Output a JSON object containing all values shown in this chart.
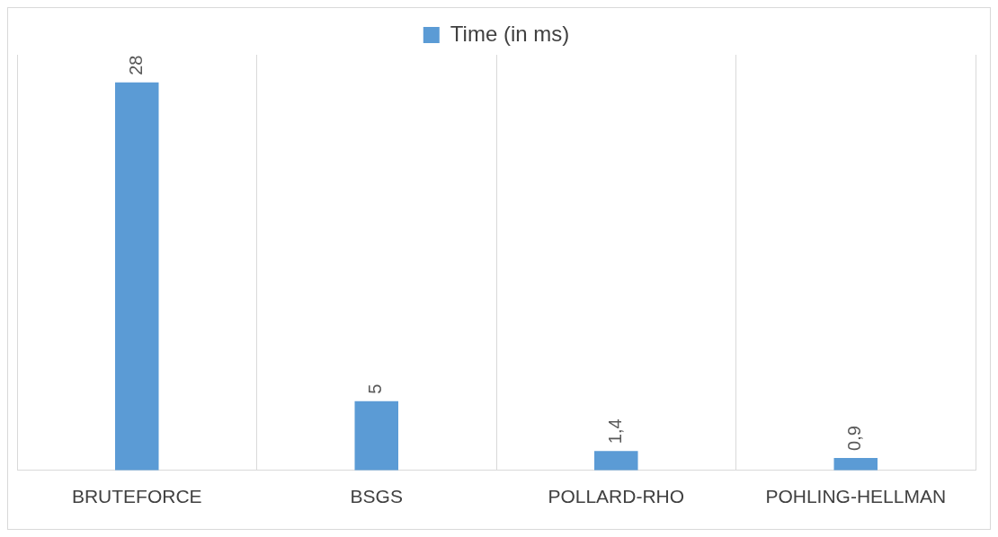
{
  "chart_data": {
    "type": "bar",
    "categories": [
      "BRUTEFORCE",
      "BSGS",
      "POLLARD-RHO",
      "POHLING-HELLMAN"
    ],
    "series": [
      {
        "name": "Time (in ms)",
        "color": "#5b9bd5",
        "values": [
          28,
          5,
          1.4,
          0.9
        ],
        "value_labels": [
          "28",
          "5",
          "1,4",
          "0,9"
        ]
      }
    ],
    "ylim": [
      0,
      30
    ],
    "tick_labels": "x",
    "grid": "x",
    "legend": "top"
  }
}
